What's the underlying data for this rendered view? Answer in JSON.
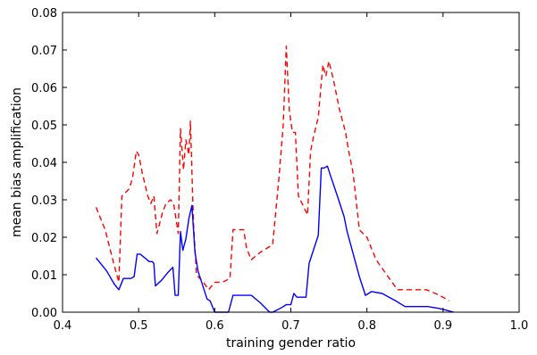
{
  "chart_data": {
    "type": "line",
    "title": "",
    "xlabel": "training gender ratio",
    "ylabel": "mean bias amplification",
    "xlim": [
      0.4,
      1.0
    ],
    "ylim": [
      0.0,
      0.08
    ],
    "xticks": [
      "0.4",
      "0.5",
      "0.6",
      "0.7",
      "0.8",
      "0.9",
      "1.0"
    ],
    "yticks": [
      "0.00",
      "0.01",
      "0.02",
      "0.03",
      "0.04",
      "0.05",
      "0.06",
      "0.07",
      "0.08"
    ],
    "grid": false,
    "series": [
      {
        "color": "#ff0000",
        "style": "dashed",
        "x": [
          0.444,
          0.456,
          0.466,
          0.474,
          0.478,
          0.488,
          0.492,
          0.497,
          0.5,
          0.505,
          0.512,
          0.516,
          0.52,
          0.524,
          0.532,
          0.536,
          0.542,
          0.546,
          0.552,
          0.555,
          0.559,
          0.562,
          0.566,
          0.568,
          0.572,
          0.576,
          0.585,
          0.592,
          0.6,
          0.61,
          0.62,
          0.624,
          0.63,
          0.638,
          0.642,
          0.648,
          0.66,
          0.676,
          0.684,
          0.69,
          0.694,
          0.698,
          0.702,
          0.706,
          0.71,
          0.722,
          0.726,
          0.73,
          0.736,
          0.742,
          0.746,
          0.75,
          0.756,
          0.764,
          0.772,
          0.776,
          0.782,
          0.79,
          0.8,
          0.812,
          0.826,
          0.84,
          0.852,
          0.866,
          0.878,
          0.89,
          0.9,
          0.908
        ],
        "y": [
          0.028,
          0.022,
          0.014,
          0.008,
          0.031,
          0.033,
          0.036,
          0.043,
          0.042,
          0.037,
          0.031,
          0.029,
          0.031,
          0.021,
          0.027,
          0.029,
          0.03,
          0.029,
          0.021,
          0.049,
          0.038,
          0.046,
          0.042,
          0.051,
          0.024,
          0.01,
          0.008,
          0.006,
          0.008,
          0.008,
          0.009,
          0.022,
          0.022,
          0.022,
          0.017,
          0.014,
          0.016,
          0.018,
          0.035,
          0.05,
          0.071,
          0.054,
          0.048,
          0.048,
          0.031,
          0.026,
          0.043,
          0.047,
          0.052,
          0.066,
          0.063,
          0.067,
          0.062,
          0.054,
          0.048,
          0.043,
          0.037,
          0.022,
          0.02,
          0.014,
          0.01,
          0.006,
          0.006,
          0.006,
          0.006,
          0.005,
          0.004,
          0.003
        ]
      },
      {
        "color": "#0000ff",
        "style": "solid",
        "x": [
          0.444,
          0.458,
          0.468,
          0.474,
          0.48,
          0.49,
          0.494,
          0.498,
          0.502,
          0.508,
          0.514,
          0.518,
          0.52,
          0.522,
          0.53,
          0.538,
          0.545,
          0.548,
          0.552,
          0.555,
          0.558,
          0.562,
          0.566,
          0.57,
          0.574,
          0.578,
          0.59,
          0.594,
          0.6,
          0.604,
          0.618,
          0.624,
          0.632,
          0.648,
          0.66,
          0.672,
          0.676,
          0.686,
          0.694,
          0.7,
          0.704,
          0.708,
          0.712,
          0.72,
          0.724,
          0.736,
          0.74,
          0.744,
          0.748,
          0.752,
          0.762,
          0.77,
          0.774,
          0.79,
          0.798,
          0.806,
          0.82,
          0.838,
          0.85,
          0.866,
          0.88,
          0.895,
          0.905,
          0.914
        ],
        "y": [
          0.0145,
          0.011,
          0.0075,
          0.006,
          0.009,
          0.009,
          0.0095,
          0.0155,
          0.0155,
          0.0145,
          0.0135,
          0.0135,
          0.013,
          0.007,
          0.0085,
          0.0105,
          0.012,
          0.0045,
          0.0045,
          0.0215,
          0.0165,
          0.0195,
          0.025,
          0.0285,
          0.016,
          0.011,
          0.0035,
          0.003,
          0.0,
          0.0,
          0.0,
          0.0045,
          0.0045,
          0.0045,
          0.0025,
          0.0,
          0.0,
          0.001,
          0.002,
          0.002,
          0.005,
          0.004,
          0.004,
          0.004,
          0.013,
          0.0205,
          0.0385,
          0.0385,
          0.039,
          0.0365,
          0.0305,
          0.0255,
          0.0215,
          0.0095,
          0.0045,
          0.0055,
          0.005,
          0.003,
          0.0015,
          0.0015,
          0.0015,
          0.001,
          0.0005,
          0.0
        ]
      }
    ]
  }
}
